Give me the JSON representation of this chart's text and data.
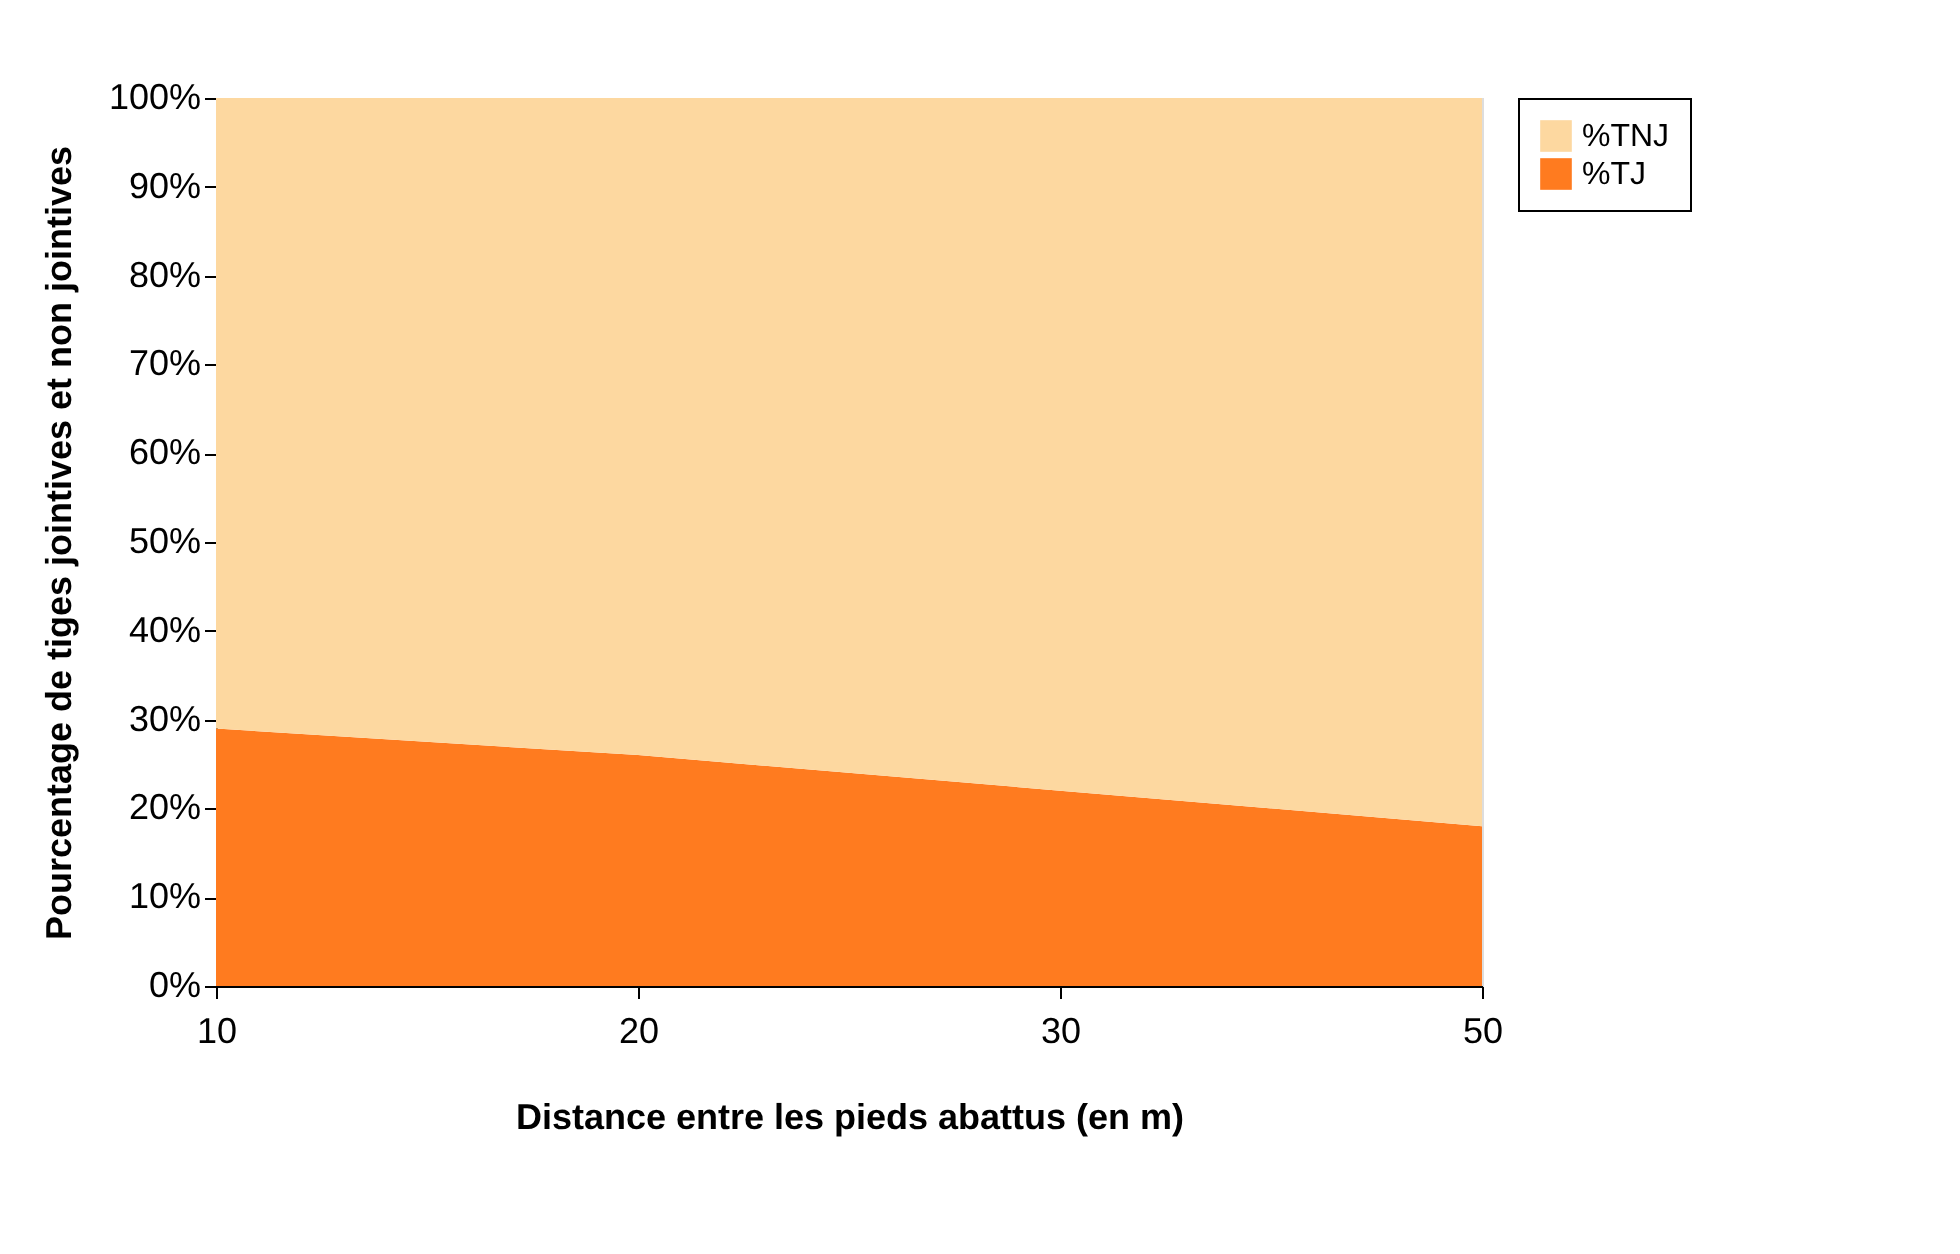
{
  "chart_data": {
    "type": "area",
    "stacked": true,
    "xlabel": "Distance entre les pieds abattus (en m)",
    "ylabel": "Pourcentage de tiges jointives et non jointives",
    "categories": [
      "10",
      "20",
      "30",
      "50"
    ],
    "series": [
      {
        "name": "%TJ",
        "color": "#ff7b1f",
        "values": [
          29,
          26,
          22,
          18
        ]
      },
      {
        "name": "%TNJ",
        "color": "#fdd8a0",
        "values": [
          71,
          74,
          78,
          82
        ]
      }
    ],
    "ylim": [
      0,
      100
    ],
    "yticks": [
      {
        "value": 0,
        "label": "0%"
      },
      {
        "value": 10,
        "label": "10%"
      },
      {
        "value": 20,
        "label": "20%"
      },
      {
        "value": 30,
        "label": "30%"
      },
      {
        "value": 40,
        "label": "40%"
      },
      {
        "value": 50,
        "label": "50%"
      },
      {
        "value": 60,
        "label": "60%"
      },
      {
        "value": 70,
        "label": "70%"
      },
      {
        "value": 80,
        "label": "80%"
      },
      {
        "value": 90,
        "label": "90%"
      },
      {
        "value": 100,
        "label": "100%"
      }
    ],
    "legend": "right"
  }
}
